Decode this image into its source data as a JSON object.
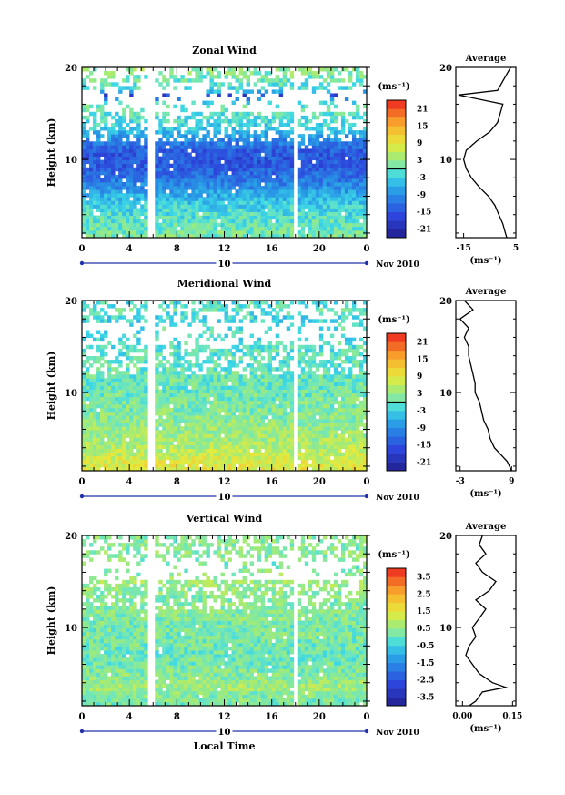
{
  "chart_data": [
    {
      "type": "heatmap",
      "title": "Zonal Wind",
      "ylabel": "Height (km)",
      "xlabel": "",
      "xlim": [
        0,
        24
      ],
      "ylim": [
        1.5,
        20
      ],
      "x_ticks": [
        "0",
        "4",
        "8",
        "12",
        "16",
        "20",
        "0"
      ],
      "y_ticks": [
        "20",
        "10"
      ],
      "date_day": "10",
      "date_label": "Nov 2010",
      "unit_label": "(ms⁻¹)",
      "colorbar": {
        "min": -24,
        "max": 24,
        "step": 3,
        "tick_labels": [
          "21",
          "15",
          "9",
          "3",
          "-3",
          "-9",
          "-15",
          "-21"
        ],
        "tick_values": [
          21,
          15,
          9,
          3,
          -3,
          -9,
          -15,
          -21
        ]
      },
      "data_gaps_hours": [
        [
          5.6,
          6.1
        ],
        [
          17.7,
          18.2
        ]
      ],
      "profile": [
        [
          1.5,
          1.5
        ],
        [
          2,
          1
        ],
        [
          3,
          0
        ],
        [
          4,
          -1.5
        ],
        [
          5,
          -3
        ],
        [
          6,
          -5.5
        ],
        [
          7,
          -9
        ],
        [
          8,
          -12
        ],
        [
          9,
          -14
        ],
        [
          10,
          -15
        ],
        [
          11,
          -14
        ],
        [
          12,
          -10
        ],
        [
          13,
          -5
        ],
        [
          14,
          -2
        ],
        [
          15,
          -1
        ],
        [
          16,
          0
        ],
        [
          17,
          -17
        ],
        [
          17.5,
          -2
        ],
        [
          18,
          -1
        ],
        [
          19,
          1
        ],
        [
          20,
          3
        ]
      ],
      "profile_panel": {
        "title": "Average",
        "xlim": [
          -18,
          5
        ],
        "x_ticks": [
          "-15",
          "5"
        ],
        "x_tick_values": [
          -15,
          5
        ],
        "y_ticks": [
          "20",
          "10"
        ],
        "xlabel": "(ms⁻¹)"
      }
    },
    {
      "type": "heatmap",
      "title": "Meridional Wind",
      "ylabel": "Height (km)",
      "xlabel": "",
      "xlim": [
        0,
        24
      ],
      "ylim": [
        1.5,
        20
      ],
      "x_ticks": [
        "0",
        "4",
        "8",
        "12",
        "16",
        "20",
        "0"
      ],
      "y_ticks": [
        "20",
        "10"
      ],
      "date_day": "10",
      "date_label": "Nov 2010",
      "unit_label": "(ms⁻¹)",
      "colorbar": {
        "min": -24,
        "max": 24,
        "step": 3,
        "tick_labels": [
          "21",
          "15",
          "9",
          "3",
          "-3",
          "-9",
          "-15",
          "-21"
        ],
        "tick_values": [
          21,
          15,
          9,
          3,
          -3,
          -9,
          -15,
          -21
        ]
      },
      "data_gaps_hours": [
        [
          5.6,
          6.1
        ],
        [
          17.7,
          18.2
        ]
      ],
      "profile": [
        [
          1.5,
          9
        ],
        [
          2.5,
          8
        ],
        [
          3,
          7
        ],
        [
          4,
          5
        ],
        [
          5,
          4
        ],
        [
          6,
          3.5
        ],
        [
          7,
          2.5
        ],
        [
          8,
          2
        ],
        [
          9,
          1.5
        ],
        [
          10,
          0.5
        ],
        [
          11,
          0.5
        ],
        [
          12,
          0
        ],
        [
          13,
          -0.5
        ],
        [
          14,
          -1
        ],
        [
          15,
          -1
        ],
        [
          16,
          -2
        ],
        [
          17,
          -1
        ],
        [
          18,
          -3
        ],
        [
          19,
          0
        ],
        [
          20,
          -2
        ]
      ],
      "profile_panel": {
        "title": "Average",
        "xlim": [
          -4,
          10
        ],
        "x_ticks": [
          "-3",
          "9"
        ],
        "x_tick_values": [
          -3,
          9
        ],
        "y_ticks": [
          "20",
          "10"
        ],
        "xlabel": "(ms⁻¹)"
      }
    },
    {
      "type": "heatmap",
      "title": "Vertical Wind",
      "ylabel": "Height (km)",
      "xlabel": "Local Time",
      "xlim": [
        0,
        24
      ],
      "ylim": [
        1.5,
        20
      ],
      "x_ticks": [
        "0",
        "4",
        "8",
        "12",
        "16",
        "20",
        "0"
      ],
      "y_ticks": [
        "20",
        "10"
      ],
      "date_day": "10",
      "date_label": "Nov 2010",
      "unit_label": "(ms⁻¹)",
      "colorbar": {
        "min": -4,
        "max": 4,
        "step": 0.5,
        "tick_labels": [
          "3.5",
          "2.5",
          "1.5",
          "0.5",
          "-0.5",
          "-1.5",
          "-2.5",
          "-3.5"
        ],
        "tick_values": [
          3.5,
          2.5,
          1.5,
          0.5,
          -0.5,
          -1.5,
          -2.5,
          -3.5
        ]
      },
      "data_gaps_hours": [
        [
          5.6,
          6.1
        ],
        [
          17.7,
          18.2
        ]
      ],
      "profile": [
        [
          1.5,
          0.02
        ],
        [
          2,
          0.04
        ],
        [
          3,
          0.06
        ],
        [
          3.5,
          0.13
        ],
        [
          4,
          0.09
        ],
        [
          5,
          0.05
        ],
        [
          6,
          0.03
        ],
        [
          7,
          0.01
        ],
        [
          8,
          0.02
        ],
        [
          9,
          0.04
        ],
        [
          10,
          0.03
        ],
        [
          11,
          0.05
        ],
        [
          12,
          0.07
        ],
        [
          13,
          0.04
        ],
        [
          14,
          0.08
        ],
        [
          15,
          0.1
        ],
        [
          16,
          0.06
        ],
        [
          17,
          0.04
        ],
        [
          18,
          0.07
        ],
        [
          19,
          0.05
        ],
        [
          20,
          0.06
        ]
      ],
      "profile_panel": {
        "title": "Average",
        "xlim": [
          -0.02,
          0.16
        ],
        "x_ticks": [
          "0.00",
          "0.15"
        ],
        "x_tick_values": [
          0.0,
          0.15
        ],
        "y_ticks": [
          "20",
          "10"
        ],
        "xlabel": "(ms⁻¹)"
      }
    }
  ]
}
